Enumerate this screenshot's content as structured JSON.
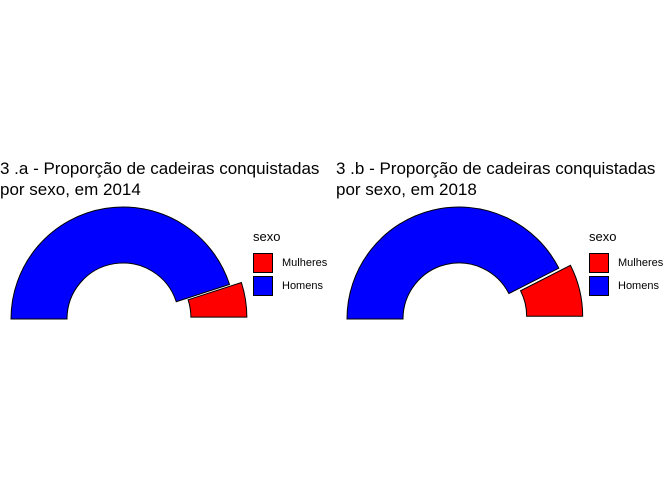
{
  "chart_data": [
    {
      "type": "pie",
      "variant": "half-donut-exploded",
      "title": [
        "3 .a  - Proporção de cadeiras conquistadas",
        "por sexo, em 2014"
      ],
      "legend_title": "sexo",
      "legend_position": "right",
      "categories": [
        "Mulheres",
        "Homens"
      ],
      "colors": [
        "#ff0000",
        "#0000ff"
      ],
      "values": [
        10,
        90
      ]
    },
    {
      "type": "pie",
      "variant": "half-donut-exploded",
      "title": [
        "3 .b  - Proporção de cadeiras conquistadas",
        "por sexo, em 2018"
      ],
      "legend_title": "sexo",
      "legend_position": "right",
      "categories": [
        "Mulheres",
        "Homens"
      ],
      "colors": [
        "#ff0000",
        "#0000ff"
      ],
      "values": [
        15,
        85
      ]
    }
  ]
}
